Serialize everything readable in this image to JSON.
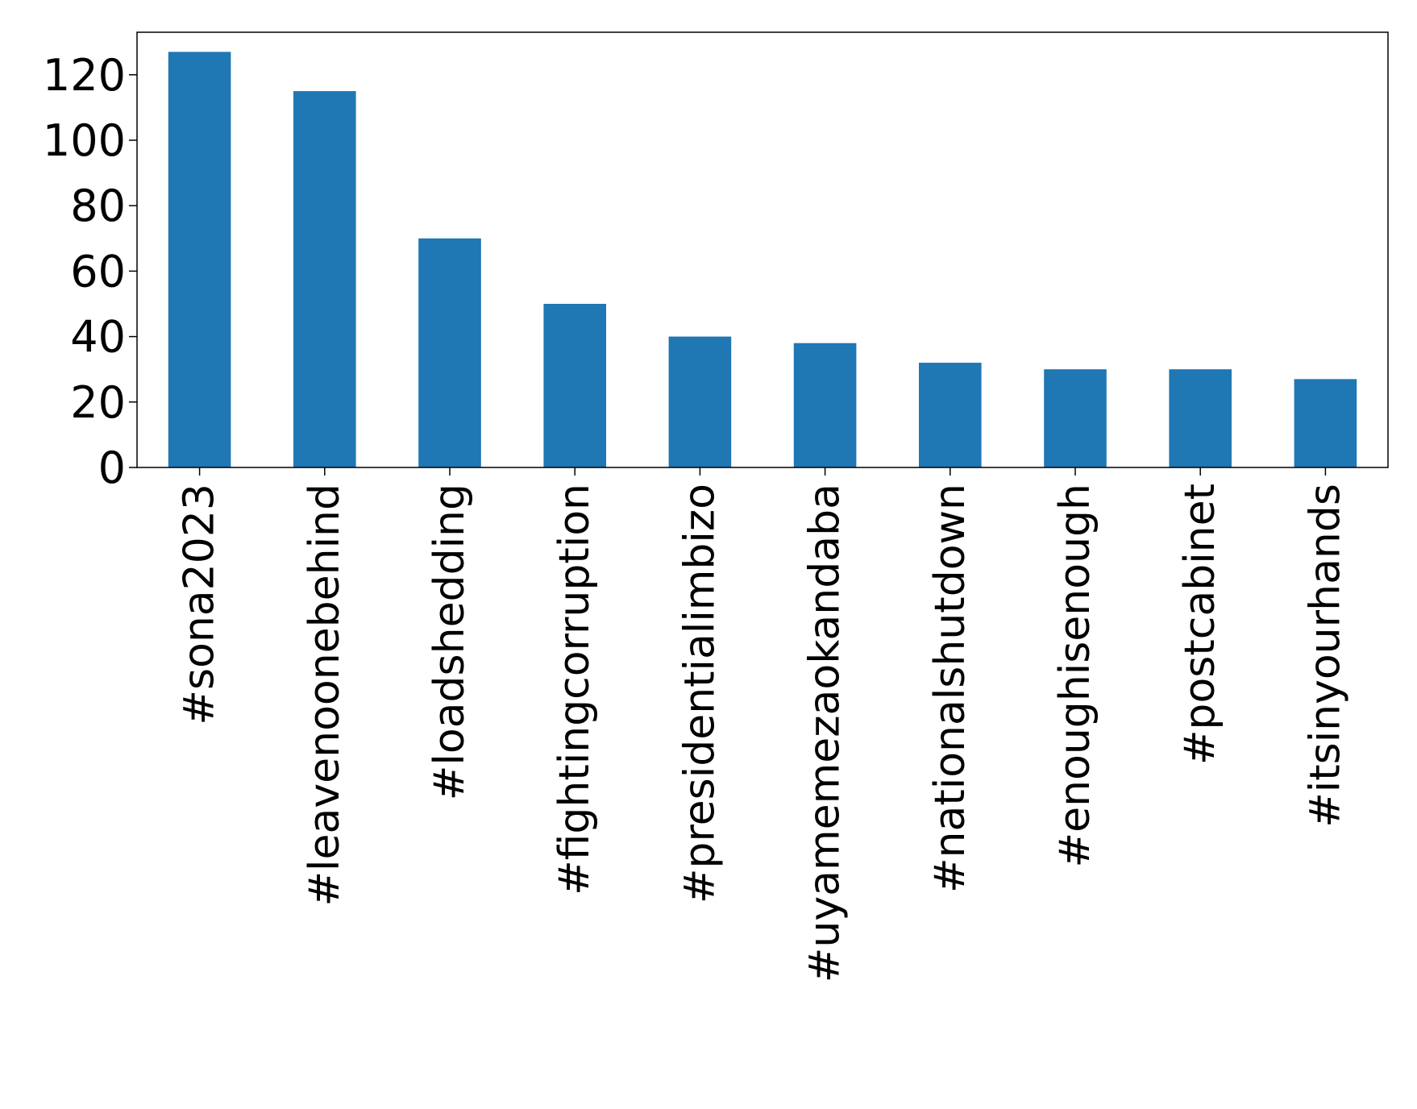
{
  "chart_data": {
    "type": "bar",
    "title": "",
    "xlabel": "",
    "ylabel": "",
    "categories": [
      "#sona2023",
      "#leavenoonebehind",
      "#loadshedding",
      "#fightingcorruption",
      "#presidentialimbizo",
      "#uyamemezaokandaba",
      "#nationalshutdown",
      "#enoughisenough",
      "#postcabinet",
      "#itsinyourhands"
    ],
    "values": [
      127,
      115,
      70,
      50,
      40,
      38,
      32,
      30,
      30,
      27
    ],
    "ylim": [
      0,
      133
    ],
    "yticks": [
      0,
      20,
      40,
      60,
      80,
      100,
      120
    ],
    "grid": false,
    "legend": "none",
    "bar_color": "#1f77b4"
  }
}
